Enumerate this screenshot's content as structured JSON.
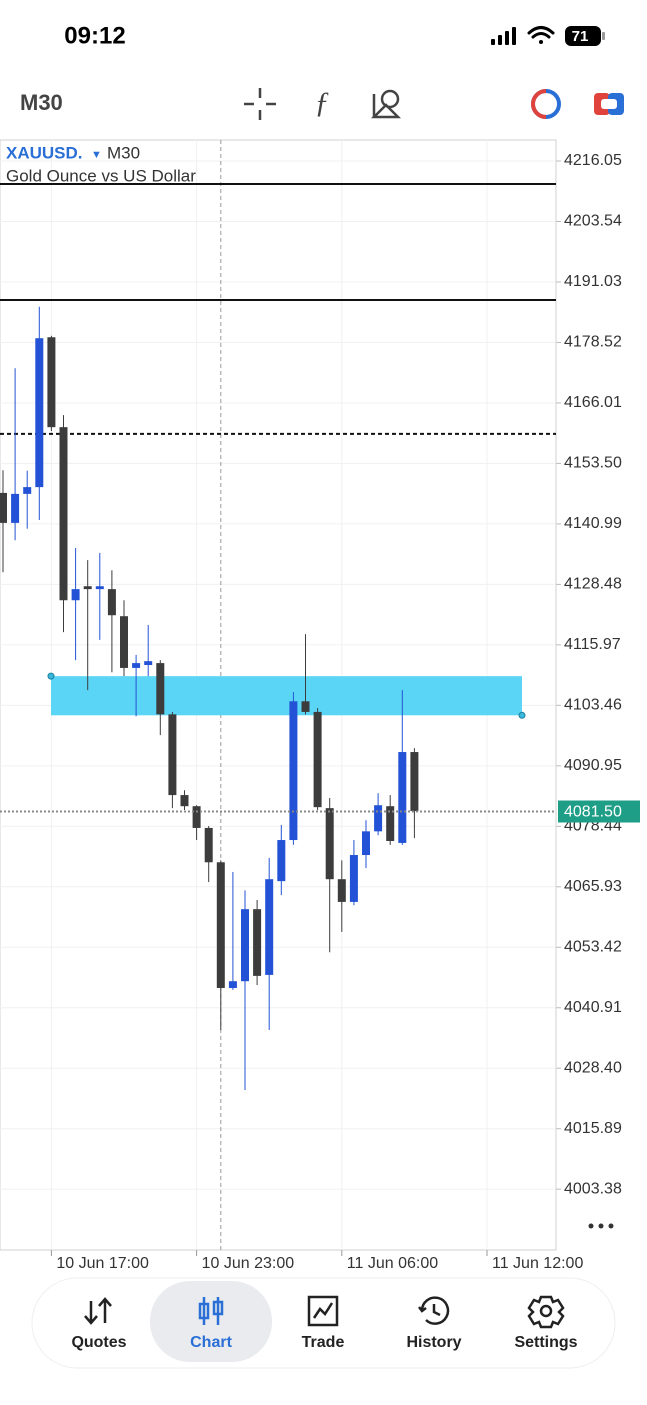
{
  "status": {
    "time": "09:12",
    "battery": "71"
  },
  "toolbar": {
    "timeframe": "M30"
  },
  "chart_data": {
    "type": "candlestick",
    "symbol": "XAUUSD.",
    "timeframe": "M30",
    "description": "Gold Ounce vs US Dollar",
    "categories": [
      null,
      null,
      null,
      null,
      "10 Jun 17:00",
      null,
      null,
      null,
      null,
      null,
      null,
      null,
      null,
      null,
      null,
      null,
      "10 Jun 23:00",
      null,
      null,
      null,
      null,
      null,
      null,
      null,
      null,
      null,
      null,
      null,
      "11 Jun 06:00",
      null,
      null,
      null,
      null,
      null,
      null,
      null,
      null,
      null,
      null,
      null,
      "11 Jun 12:00",
      null,
      null,
      null,
      null,
      null
    ],
    "open": [
      4147.4,
      4141.2,
      4147.2,
      4148.6,
      4179.6,
      4161.0,
      4125.2,
      4128.1,
      4127.5,
      4127.5,
      4121.9,
      4111.2,
      4111.8,
      4112.2,
      4101.6,
      4084.9,
      4082.6,
      4078.1,
      4071.0,
      4045.0,
      4046.4,
      4061.3,
      4047.7,
      4067.1,
      4075.6,
      4104.3,
      4102.1,
      4082.2,
      4067.5,
      4062.8,
      4072.5,
      4077.4,
      4082.6,
      4075.0,
      4093.8,
      null,
      null,
      null,
      null,
      null,
      null,
      null,
      null,
      null,
      null,
      null
    ],
    "high": [
      4152.1,
      4173.2,
      4152.0,
      4185.9,
      4179.9,
      4163.5,
      4136.0,
      4133.5,
      4135.0,
      4131.4,
      4125.2,
      4113.9,
      4120.1,
      4112.8,
      4102.1,
      4085.9,
      4082.8,
      4078.5,
      4071.4,
      4069.0,
      4065.2,
      4063.2,
      4071.9,
      4078.7,
      4106.2,
      4118.2,
      4102.9,
      4084.3,
      4071.4,
      4075.6,
      4079.7,
      4085.3,
      4084.9,
      4106.6,
      4094.6,
      null,
      null,
      null,
      null,
      null,
      null,
      null,
      null,
      null,
      null,
      null
    ],
    "low": [
      4131.0,
      4137.6,
      4140.0,
      4141.8,
      4160.2,
      4118.6,
      4112.8,
      4106.6,
      4117.0,
      4110.3,
      4109.5,
      4101.2,
      4109.5,
      4097.3,
      4082.2,
      4081.8,
      4075.6,
      4066.9,
      4036.3,
      4044.6,
      4023.9,
      4045.6,
      4036.3,
      4064.2,
      4074.6,
      4101.6,
      4081.8,
      4052.4,
      4056.6,
      4062.1,
      4069.8,
      4076.6,
      4074.6,
      4074.6,
      4076.0,
      null,
      null,
      null,
      null,
      null,
      null,
      null,
      null,
      null,
      null,
      null
    ],
    "close": [
      4141.2,
      4147.2,
      4148.6,
      4179.4,
      4161.0,
      4125.2,
      4127.5,
      4127.5,
      4128.1,
      4122.1,
      4111.2,
      4112.2,
      4112.6,
      4101.6,
      4084.9,
      4082.6,
      4078.1,
      4071.0,
      4045.0,
      4046.4,
      4061.3,
      4047.5,
      4067.5,
      4075.6,
      4104.3,
      4102.1,
      4082.4,
      4067.5,
      4062.8,
      4072.5,
      4077.4,
      4082.8,
      4075.4,
      4093.8,
      4081.6,
      null,
      null,
      null,
      null,
      null,
      null,
      null,
      null,
      null,
      null,
      null
    ],
    "up_color": "#2352d6",
    "down_color": "#3c3c3c",
    "ylim": [
      3990.8,
      4220.4
    ],
    "yticks": [
      4003.38,
      4015.89,
      {
        "value": 4028.4,
        "label": "4028.40"
      },
      4040.91,
      4053.42,
      4065.93,
      4078.44,
      4090.95,
      4103.46,
      4115.97,
      4128.48,
      4140.99,
      {
        "value": 4153.5,
        "label": "4153.50"
      },
      4166.01,
      4178.52,
      4191.03,
      4203.54,
      4216.05
    ],
    "grid": true,
    "levels": [
      {
        "value": 4211.3,
        "style": "solid"
      },
      {
        "value": 4187.3,
        "style": "solid"
      },
      {
        "value": 4159.6,
        "style": "dashed"
      }
    ],
    "zone": {
      "high": 4109.5,
      "low": 4101.4,
      "color": "#5bd5f5"
    },
    "last_price": {
      "value": 4081.5,
      "label": "4081.50",
      "color": "#1f9e87"
    },
    "crosshair_index": 18
  },
  "nav": {
    "items": [
      "Quotes",
      "Chart",
      "Trade",
      "History",
      "Settings"
    ],
    "active": 1
  }
}
